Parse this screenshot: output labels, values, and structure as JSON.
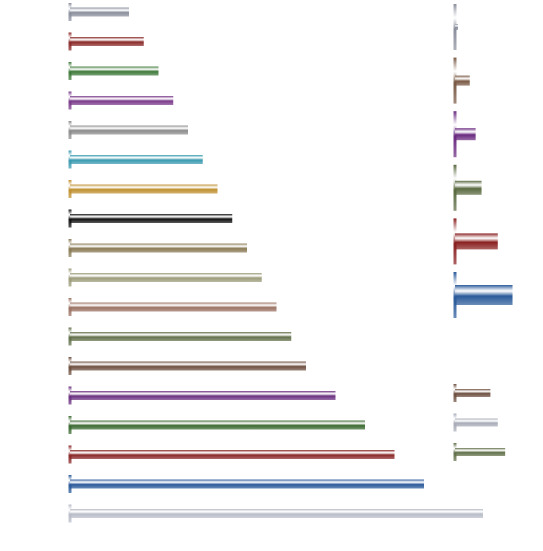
{
  "chart_data": [
    {
      "type": "bar",
      "orientation": "horizontal",
      "values": [
        4,
        5,
        6,
        7,
        8,
        9,
        10,
        11,
        12,
        13,
        14,
        15,
        16,
        18,
        20,
        22,
        24,
        28
      ],
      "colors": [
        "#8a8f9c",
        "#8a2a2a",
        "#3f7a3a",
        "#7a3a8a",
        "#8c8c8c",
        "#3a9ab0",
        "#c09030",
        "#111111",
        "#8a7a55",
        "#9c9c7a",
        "#9a7262",
        "#62704a",
        "#6e5040",
        "#6a3080",
        "#3a6a30",
        "#8a2828",
        "#2a5a9a",
        "#b8bcc8"
      ]
    },
    {
      "type": "bar",
      "orientation": "horizontal",
      "values": [
        0.2,
        1,
        1.4,
        1.8,
        2.9,
        3.9
      ],
      "colors": [
        "#8a8f9c",
        "#7a5a45",
        "#6a2a80",
        "#5a6a40",
        "#8a2020",
        "#2a5a9a"
      ]
    },
    {
      "type": "bar",
      "orientation": "horizontal",
      "values": [
        2.4,
        2.9,
        3.4
      ],
      "colors": [
        "#6e5040",
        "#a8acb8",
        "#62704a"
      ]
    }
  ]
}
